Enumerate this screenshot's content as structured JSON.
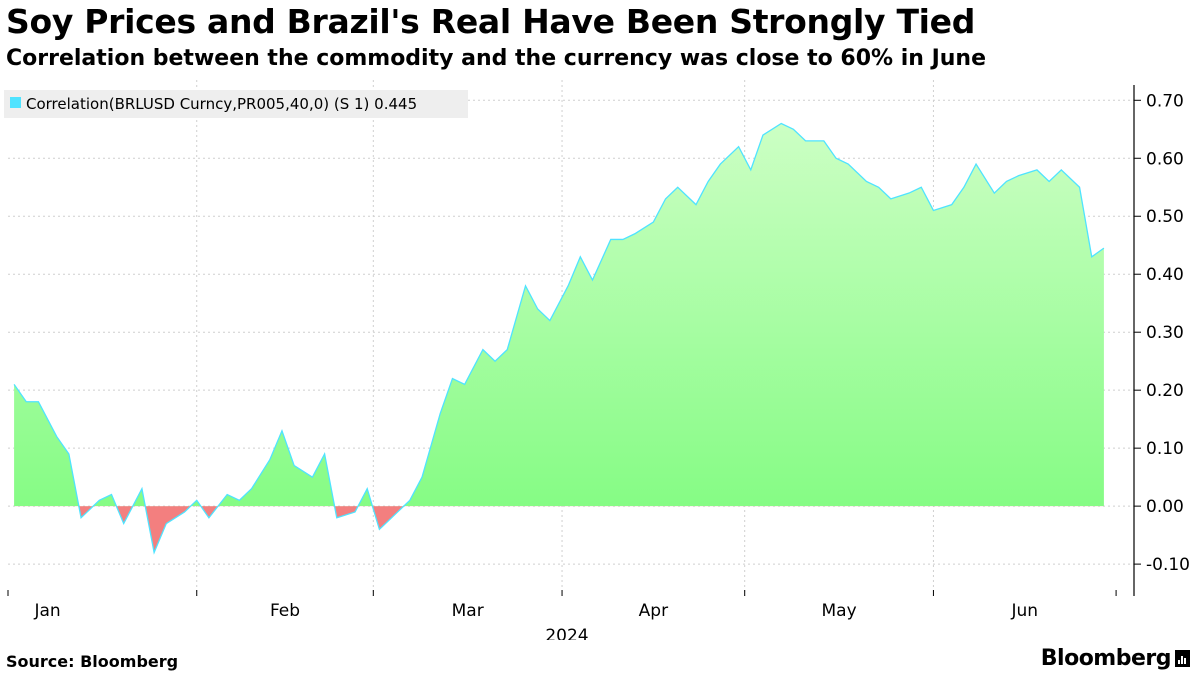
{
  "header": {
    "title": "Soy Prices and Brazil's Real Have Been Strongly Tied",
    "subtitle": "Correlation between the commodity and the currency was close to 60% in June"
  },
  "footer": {
    "source": "Source:  Bloomberg",
    "brand": "Bloomberg"
  },
  "colors": {
    "line": "#4fe3ff",
    "positive_fill_top": "#ccffc4",
    "positive_fill_bottom": "#7dfb7d",
    "negative_fill": "#f37f7f",
    "grid": "#cfcfcf"
  },
  "chart_data": {
    "type": "area",
    "legend": "Correlation(BRLUSD Curncy,PR005,40,0) (S 1) 0.445",
    "legend_position": "top-left",
    "year_label": "2024",
    "month_labels": [
      "Jan",
      "Feb",
      "Mar",
      "Apr",
      "May",
      "Jun"
    ],
    "y_ticks": [
      0.7,
      0.6,
      0.5,
      0.4,
      0.3,
      0.2,
      0.1,
      0.0,
      -0.1
    ],
    "y_tick_labels": [
      "0.70",
      "0.60",
      "0.50",
      "0.40",
      "0.30",
      "0.20",
      "0.10",
      "0.00",
      "-0.10"
    ],
    "ylim": [
      -0.155,
      0.735
    ],
    "xlim": [
      0,
      181
    ],
    "grid": true,
    "x": [
      1,
      3,
      5,
      8,
      10,
      12,
      15,
      17,
      19,
      22,
      24,
      26,
      29,
      31,
      33,
      36,
      38,
      40,
      43,
      45,
      47,
      50,
      52,
      54,
      57,
      59,
      61,
      64,
      66,
      68,
      71,
      73,
      75,
      78,
      80,
      82,
      85,
      87,
      89,
      92,
      94,
      96,
      99,
      101,
      103,
      106,
      108,
      110,
      113,
      115,
      117,
      120,
      122,
      124,
      127,
      129,
      131,
      134,
      136,
      138,
      141,
      143,
      145,
      148,
      150,
      152,
      155,
      157,
      159,
      162,
      164,
      166,
      169,
      171,
      173,
      176,
      178,
      180
    ],
    "values": [
      0.21,
      0.18,
      0.18,
      0.12,
      0.09,
      -0.02,
      0.01,
      0.02,
      -0.03,
      0.03,
      -0.08,
      -0.03,
      -0.01,
      0.01,
      -0.02,
      0.02,
      0.01,
      0.03,
      0.08,
      0.13,
      0.07,
      0.05,
      0.09,
      -0.02,
      -0.01,
      0.03,
      -0.04,
      -0.01,
      0.01,
      0.05,
      0.16,
      0.22,
      0.21,
      0.27,
      0.25,
      0.27,
      0.38,
      0.34,
      0.32,
      0.38,
      0.43,
      0.39,
      0.46,
      0.46,
      0.47,
      0.49,
      0.53,
      0.55,
      0.52,
      0.56,
      0.59,
      0.62,
      0.58,
      0.64,
      0.66,
      0.65,
      0.63,
      0.63,
      0.6,
      0.59,
      0.56,
      0.55,
      0.53,
      0.54,
      0.55,
      0.51,
      0.52,
      0.55,
      0.59,
      0.54,
      0.56,
      0.57,
      0.58,
      0.56,
      0.58,
      0.55,
      0.43,
      0.445
    ]
  }
}
